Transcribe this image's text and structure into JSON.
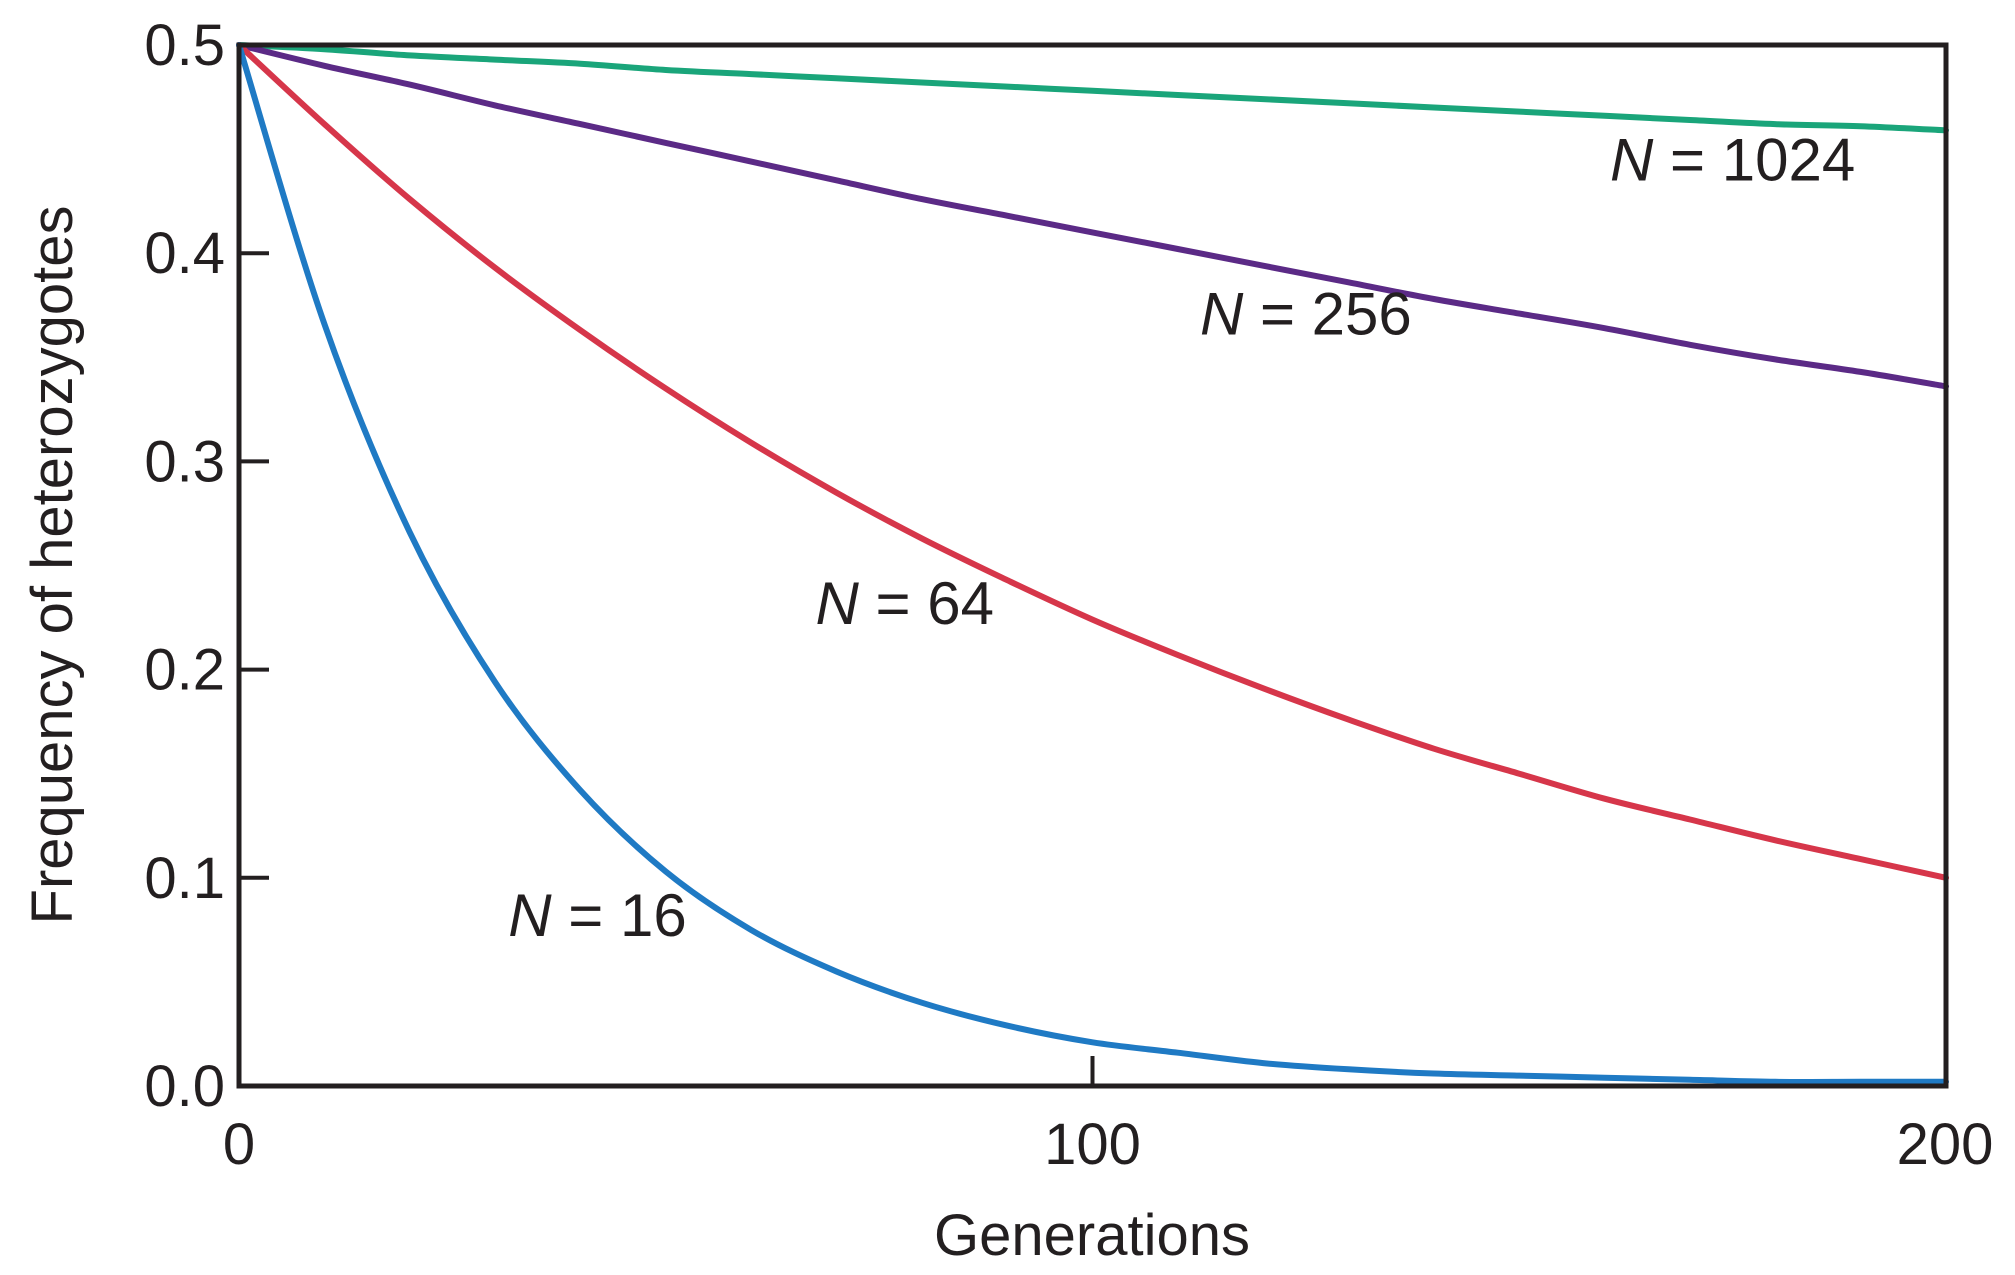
{
  "chart_data": {
    "type": "line",
    "title": "",
    "xlabel": "Generations",
    "ylabel": "Frequency of heterozygotes",
    "xlim": [
      0,
      200
    ],
    "ylim": [
      0,
      0.5
    ],
    "x_ticks": [
      0,
      100,
      200
    ],
    "x_tick_labels": [
      "0",
      "100",
      "200"
    ],
    "y_ticks": [
      0,
      0.1,
      0.2,
      0.3,
      0.4,
      0.5
    ],
    "y_tick_labels": [
      "0.0",
      "0.1",
      "0.2",
      "0.3",
      "0.4",
      "0.5"
    ],
    "grid": false,
    "legend": "none (series labeled directly on curves)",
    "x": [
      0,
      10,
      20,
      30,
      40,
      50,
      60,
      70,
      80,
      90,
      100,
      110,
      120,
      130,
      140,
      150,
      160,
      170,
      180,
      190,
      200
    ],
    "series": [
      {
        "name": "N = 1024",
        "label_var": "N",
        "label_rest": " = 1024",
        "color": "#1aa57a",
        "values": [
          0.5,
          0.498,
          0.495,
          0.493,
          0.491,
          0.488,
          0.486,
          0.484,
          0.482,
          0.48,
          0.478,
          0.476,
          0.474,
          0.472,
          0.47,
          0.468,
          0.466,
          0.464,
          0.462,
          0.461,
          0.459
        ]
      },
      {
        "name": "N = 256",
        "label_var": "N",
        "label_rest": " = 256",
        "color": "#5b2a86",
        "values": [
          0.5,
          0.49,
          0.481,
          0.471,
          0.462,
          0.453,
          0.444,
          0.435,
          0.426,
          0.418,
          0.41,
          0.402,
          0.394,
          0.386,
          0.378,
          0.371,
          0.364,
          0.356,
          0.349,
          0.343,
          0.336
        ]
      },
      {
        "name": "N = 64",
        "label_var": "N",
        "label_rest": " = 64",
        "color": "#d6364a",
        "values": [
          0.5,
          0.462,
          0.426,
          0.393,
          0.363,
          0.335,
          0.309,
          0.285,
          0.263,
          0.243,
          0.224,
          0.207,
          0.191,
          0.176,
          0.162,
          0.15,
          0.138,
          0.128,
          0.118,
          0.109,
          0.1
        ]
      },
      {
        "name": "N = 16",
        "label_var": "N",
        "label_rest": " = 16",
        "color": "#1f7ac4",
        "values": [
          0.5,
          0.366,
          0.266,
          0.194,
          0.142,
          0.103,
          0.075,
          0.055,
          0.04,
          0.029,
          0.021,
          0.016,
          0.011,
          0.008,
          0.006,
          0.005,
          0.004,
          0.003,
          0.002,
          0.002,
          0.002
        ]
      }
    ],
    "annotations": [
      {
        "series": "N = 1024",
        "x": 175,
        "y": 0.435
      },
      {
        "series": "N = 256",
        "x": 125,
        "y": 0.361
      },
      {
        "series": "N = 64",
        "x": 78,
        "y": 0.222
      },
      {
        "series": "N = 16",
        "x": 42,
        "y": 0.072
      }
    ]
  }
}
